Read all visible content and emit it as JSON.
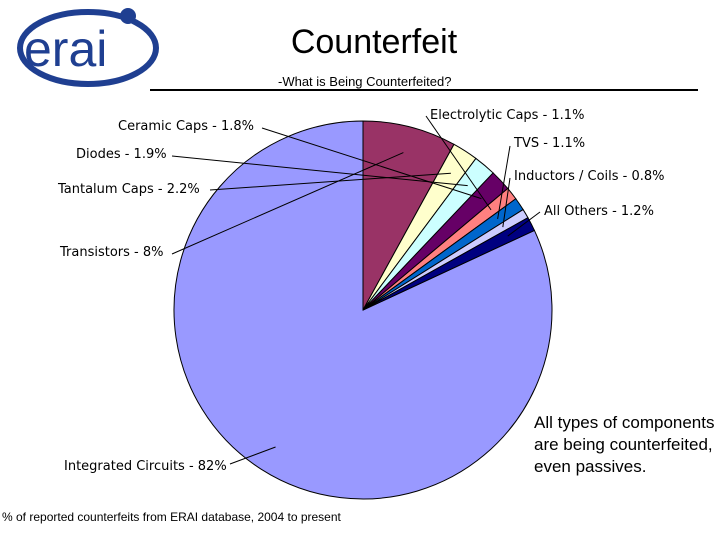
{
  "header": {
    "logo_text": "erai",
    "title": "Counterfeit",
    "subtitle": "-What is Being Counterfeited?"
  },
  "callout": "All types of components are being counterfeited, even passives.",
  "footnote": "% of reported counterfeits from ERAI database, 2004 to present",
  "colors": {
    "logo_blue": "#1f3f91",
    "outline": "#000000"
  },
  "chart_data": {
    "type": "pie",
    "title": "",
    "slices": [
      {
        "label": "Integrated Circuits - 82%",
        "value": 82,
        "color": "#9999ff"
      },
      {
        "label": "Transistors - 8%",
        "value": 8,
        "color": "#993366"
      },
      {
        "label": "Tantalum Caps - 2.2%",
        "value": 2.2,
        "color": "#ffffcc"
      },
      {
        "label": "Diodes - 1.9%",
        "value": 1.9,
        "color": "#ccffff"
      },
      {
        "label": "Ceramic Caps - 1.8%",
        "value": 1.8,
        "color": "#660066"
      },
      {
        "label": "Electrolytic Caps - 1.1%",
        "value": 1.1,
        "color": "#ff8080"
      },
      {
        "label": "TVS - 1.1%",
        "value": 1.1,
        "color": "#0066cc"
      },
      {
        "label": "Inductors / Coils - 0.8%",
        "value": 0.8,
        "color": "#ccccff"
      },
      {
        "label": "All Others - 1.2%",
        "value": 1.2,
        "color": "#000080"
      }
    ],
    "legend": "none"
  }
}
